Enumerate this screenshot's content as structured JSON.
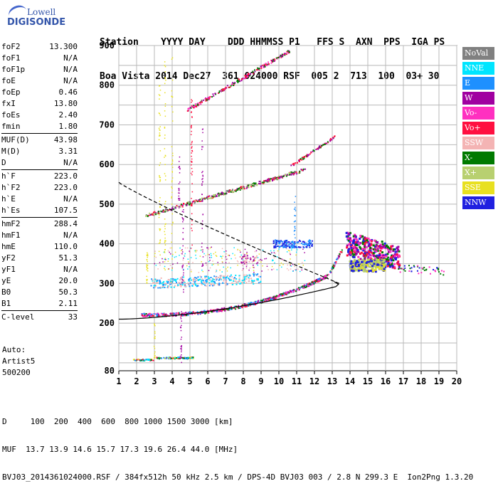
{
  "logo": {
    "brand": "Lowell",
    "product": "DIGISONDE"
  },
  "header": {
    "labels": "Station    YYYY DAY    DDD HHMMSS P1   FFS S  AXN  PPS  IGA PS",
    "values": "Boa Vista 2014 Dec27  361 024000 RSF  005 2  713  100  03+ 30"
  },
  "params": [
    {
      "name": "foF2",
      "value": "13.300"
    },
    {
      "name": "foF1",
      "value": "N/A"
    },
    {
      "name": "foF1p",
      "value": "N/A"
    },
    {
      "name": "foE",
      "value": "N/A"
    },
    {
      "name": "foEp",
      "value": "0.46"
    },
    {
      "name": "fxI",
      "value": "13.80"
    },
    {
      "name": "foEs",
      "value": "2.40"
    },
    {
      "name": "fmin",
      "value": "1.80"
    },
    {
      "name": "MUF(D)",
      "value": "43.98"
    },
    {
      "name": "M(D)",
      "value": "3.31"
    },
    {
      "name": "D",
      "value": "N/A"
    },
    {
      "name": "h`F",
      "value": "223.0"
    },
    {
      "name": "h`F2",
      "value": "223.0"
    },
    {
      "name": "h`E",
      "value": "N/A"
    },
    {
      "name": "h`Es",
      "value": "107.5"
    },
    {
      "name": "hmF2",
      "value": "288.4"
    },
    {
      "name": "hmF1",
      "value": "N/A"
    },
    {
      "name": "hmE",
      "value": "110.0"
    },
    {
      "name": "yF2",
      "value": "51.3"
    },
    {
      "name": "yF1",
      "value": "N/A"
    },
    {
      "name": "yE",
      "value": "20.0"
    },
    {
      "name": "B0",
      "value": "50.3"
    },
    {
      "name": "B1",
      "value": "2.11"
    },
    {
      "name": "C-level",
      "value": "33"
    }
  ],
  "auto": {
    "line1": "Auto:",
    "line2": "Artist5",
    "line3": "500200"
  },
  "legend": [
    {
      "label": "NoVal",
      "color": "#808080",
      "text": "#ffffff"
    },
    {
      "label": "NNE",
      "color": "#00e5ff",
      "text": "#ffffff"
    },
    {
      "label": "E",
      "color": "#1e90ff",
      "text": "#ffffff"
    },
    {
      "label": "W",
      "color": "#a000a0",
      "text": "#ffffff"
    },
    {
      "label": "Vo-",
      "color": "#ff30c0",
      "text": "#ffffff"
    },
    {
      "label": "Vo+",
      "color": "#ff1040",
      "text": "#ffffff"
    },
    {
      "label": "SSW",
      "color": "#f4b4b4",
      "text": "#ffffff"
    },
    {
      "label": "X-",
      "color": "#007a00",
      "text": "#ffffff"
    },
    {
      "label": "X+",
      "color": "#b8d070",
      "text": "#ffffff"
    },
    {
      "label": "SSE",
      "color": "#e8e020",
      "text": "#ffffff"
    },
    {
      "label": "NNW",
      "color": "#2020e0",
      "text": "#ffffff"
    }
  ],
  "chart_data": {
    "type": "scatter",
    "xlim": [
      1,
      20
    ],
    "ylim": [
      80,
      900
    ],
    "x_ticks": [
      "1",
      "2",
      "3",
      "4",
      "5",
      "6",
      "7",
      "8",
      "9",
      "10",
      "11",
      "12",
      "13",
      "14",
      "15",
      "16",
      "17",
      "18",
      "19",
      "20"
    ],
    "y_ticks": [
      "80",
      "200",
      "300",
      "400",
      "500",
      "600",
      "700",
      "800",
      "900"
    ],
    "grid": true
  },
  "footer": {
    "line1": "D     100  200  400  600  800 1000 1500 3000 [km]",
    "line2": "MUF  13.7 13.9 14.6 15.7 17.3 19.6 26.4 44.0 [MHz]",
    "line3": "BVJ03_2014361024000.RSF / 384fx512h 50 kHz 2.5 km / DPS-4D BVJ03 003 / 2.8 N 299.3 E  Ion2Png 1.3.20"
  }
}
